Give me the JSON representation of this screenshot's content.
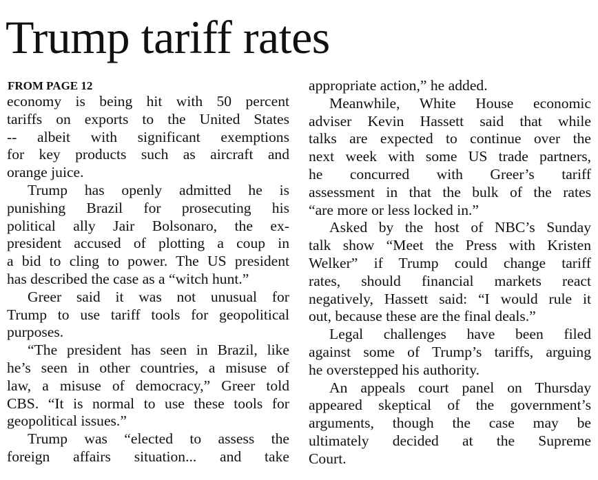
{
  "title": "Trump tariff rates",
  "kicker": "FROM PAGE 12",
  "columns": [
    {
      "paragraphs": [
        {
          "lines": [
            "economy is being hit with 50 percent",
            "tariffs on exports to the United States",
            "-- albeit with significant exemptions",
            "for key products such as aircraft and",
            "orange juice."
          ]
        },
        {
          "lines": [
            "Trump has openly admitted he is",
            "punishing Brazil for prosecuting his",
            "political ally Jair Bolsonaro, the ex-",
            "president accused of plotting a coup in",
            "a bid to cling to power. The US president",
            "has described the case as a “witch hunt.”"
          ]
        },
        {
          "lines": [
            "Greer said it was not unusual for",
            "Trump to use tariff tools for geopolitical",
            "purposes."
          ]
        },
        {
          "lines": [
            "“The president has seen in Brazil, like",
            "he’s seen in other countries, a misuse of",
            "law, a misuse of democracy,” Greer told",
            "CBS. “It is normal to use these tools for",
            "geopolitical issues.”"
          ]
        },
        {
          "lines": [
            "Trump was “elected to assess the",
            "foreign affairs situation... and take"
          ]
        }
      ]
    },
    {
      "paragraphs": [
        {
          "lines": [
            "appropriate action,” he added."
          ]
        },
        {
          "lines": [
            "Meanwhile, White House economic",
            "adviser Kevin Hassett said that while",
            "talks are expected to continue over the",
            "next week with some US trade partners,",
            "he concurred with Greer’s tariff",
            "assessment in that the bulk of the rates",
            "“are more or less locked in.”"
          ]
        },
        {
          "lines": [
            "Asked by the host of NBC’s Sunday",
            "talk show “Meet the Press with Kristen",
            "Welker” if Trump could change tariff",
            "rates, should financial markets react",
            "negatively, Hassett said: “I would rule it",
            "out, because these are the final deals.”"
          ]
        },
        {
          "lines": [
            "Legal challenges have been filed",
            "against some of Trump’s tariffs, arguing",
            "he overstepped his authority."
          ]
        },
        {
          "lines": [
            "An appeals court panel on Thursday",
            "appeared skeptical of the government’s",
            "arguments, though the case may be",
            "ultimately decided at the Supreme",
            "Court."
          ]
        }
      ]
    }
  ]
}
